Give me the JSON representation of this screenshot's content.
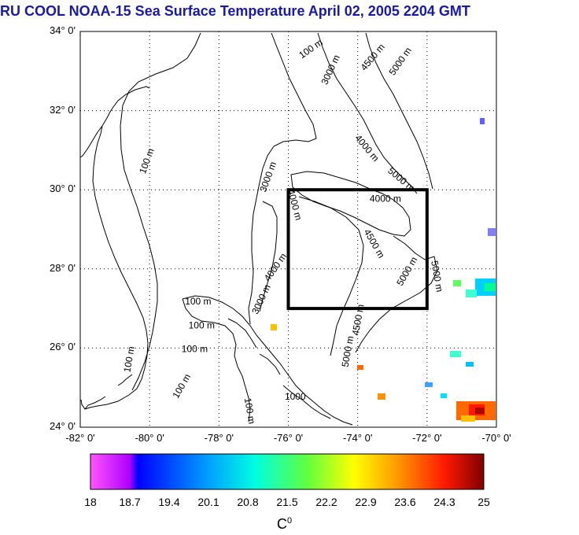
{
  "title": "RU COOL  NOAA-15 Sea Surface Temperature April 02, 2005 2204 GMT",
  "map": {
    "y_ticks": [
      "34° 0'",
      "32° 0'",
      "30° 0'",
      "28° 0'",
      "26° 0'",
      "24° 0'"
    ],
    "x_ticks": [
      "-82° 0'",
      "-80° 0'",
      "-78° 0'",
      "-76° 0'",
      "-74° 0'",
      "-72° 0'",
      "-70° 0'"
    ],
    "lon_range": [
      -82,
      -70
    ],
    "lat_range": [
      24,
      34
    ],
    "grid": "dotted",
    "box": {
      "lon": [
        -76,
        -72
      ],
      "lat": [
        27,
        30
      ]
    },
    "contour_labels": [
      {
        "text": "100 m",
        "lon": -75.3,
        "lat": 33.5,
        "rot": -35
      },
      {
        "text": "3000 m",
        "lon": -74.7,
        "lat": 33.0,
        "rot": -65
      },
      {
        "text": "4500 m",
        "lon": -73.5,
        "lat": 33.3,
        "rot": -50
      },
      {
        "text": "5000 m",
        "lon": -72.7,
        "lat": 33.2,
        "rot": -55
      },
      {
        "text": "100 m",
        "lon": -80.0,
        "lat": 30.7,
        "rot": -70
      },
      {
        "text": "4000 m",
        "lon": -73.8,
        "lat": 31.0,
        "rot": 50
      },
      {
        "text": "5000 m",
        "lon": -72.8,
        "lat": 30.2,
        "rot": 40
      },
      {
        "text": "3000 m",
        "lon": -76.5,
        "lat": 30.3,
        "rot": -70
      },
      {
        "text": "4000 m",
        "lon": -75.9,
        "lat": 29.6,
        "rot": 75
      },
      {
        "text": "4000 m",
        "lon": -73.2,
        "lat": 29.7,
        "rot": 0
      },
      {
        "text": "4500 m",
        "lon": -73.6,
        "lat": 28.6,
        "rot": 60
      },
      {
        "text": "5000 m",
        "lon": -72.5,
        "lat": 27.9,
        "rot": -60
      },
      {
        "text": "5000 m",
        "lon": -71.8,
        "lat": 27.8,
        "rot": 80
      },
      {
        "text": "4000 m",
        "lon": -76.3,
        "lat": 28.0,
        "rot": -55
      },
      {
        "text": "3000 m",
        "lon": -76.7,
        "lat": 27.2,
        "rot": -65
      },
      {
        "text": "100 m",
        "lon": -78.6,
        "lat": 27.1,
        "rot": 0
      },
      {
        "text": "100 m",
        "lon": -78.5,
        "lat": 26.5,
        "rot": 0
      },
      {
        "text": "100 m",
        "lon": -78.7,
        "lat": 25.9,
        "rot": 0
      },
      {
        "text": "4500 m",
        "lon": -73.9,
        "lat": 26.7,
        "rot": -80
      },
      {
        "text": "5000 m",
        "lon": -74.2,
        "lat": 25.9,
        "rot": -80
      },
      {
        "text": "100 m",
        "lon": -80.5,
        "lat": 25.7,
        "rot": -80
      },
      {
        "text": "100 m",
        "lon": -79.0,
        "lat": 25.0,
        "rot": -60
      },
      {
        "text": "100 m",
        "lon": -77.2,
        "lat": 24.4,
        "rot": 80
      },
      {
        "text": "1000",
        "lon": -75.8,
        "lat": 24.7,
        "rot": 0
      }
    ],
    "land_label": ""
  },
  "colorbar": {
    "ticks": [
      "18",
      "18.7",
      "19.4",
      "20.1",
      "20.8",
      "21.5",
      "22.2",
      "22.9",
      "23.6",
      "24.3",
      "25"
    ],
    "range": [
      18,
      25
    ],
    "unit": "C",
    "unit_sup": "0"
  },
  "colors": {
    "title": "#1a1aa8",
    "contour": "#000000",
    "box": "#000000"
  }
}
